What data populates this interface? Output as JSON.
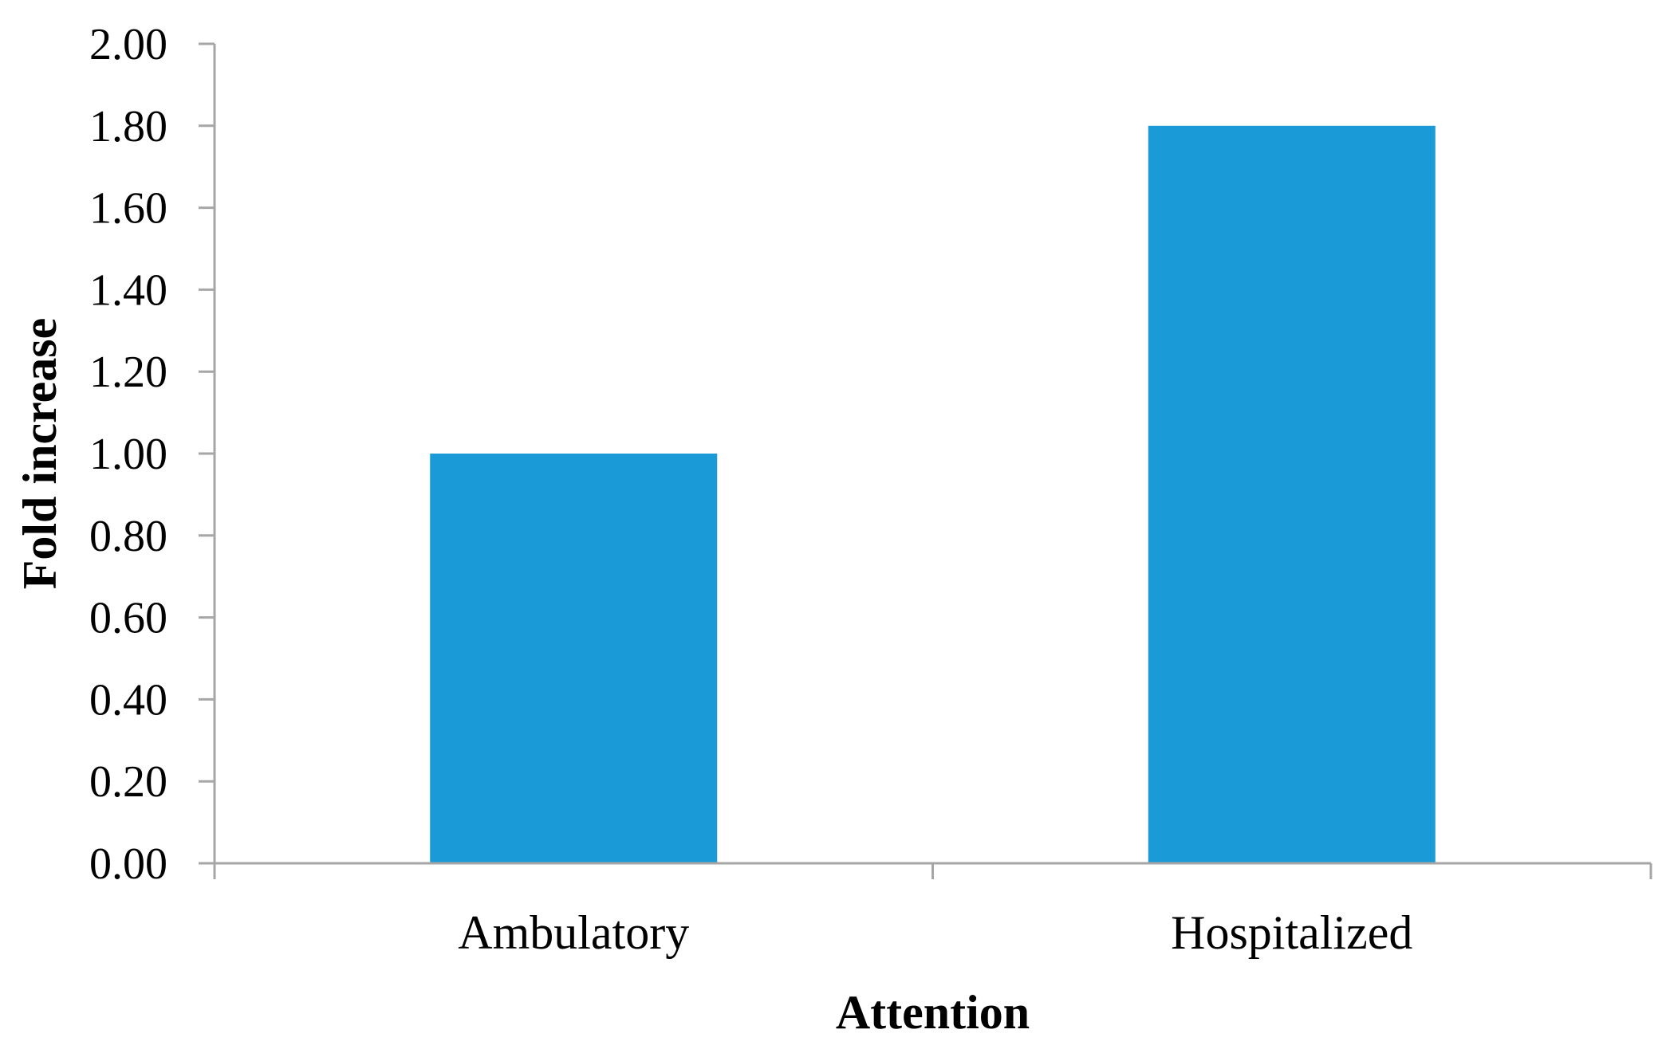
{
  "chart_data": {
    "type": "bar",
    "categories": [
      "Ambulatory",
      "Hospitalized"
    ],
    "values": [
      1.0,
      1.8
    ],
    "title": "",
    "xlabel": "Attention",
    "ylabel": "Fold increase",
    "ylim": [
      0,
      2.0
    ],
    "yticks": [
      "0.00",
      "0.20",
      "0.40",
      "0.60",
      "0.80",
      "1.00",
      "1.20",
      "1.40",
      "1.60",
      "1.80",
      "2.00"
    ],
    "grid": false,
    "legend": "none",
    "bar_color": "#1a9ad6"
  }
}
